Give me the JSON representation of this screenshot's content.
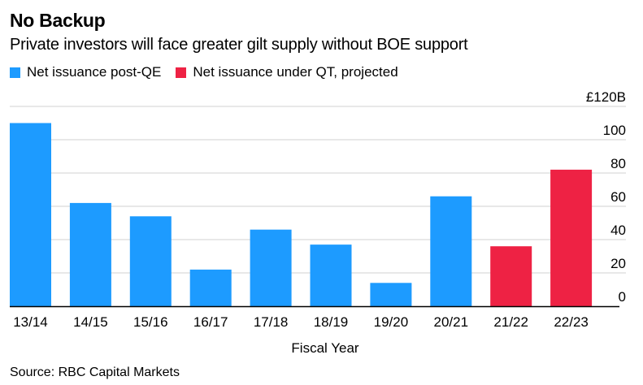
{
  "chart_data": {
    "type": "bar",
    "title": "No Backup",
    "subtitle": "Private investors will face greater gilt supply without BOE support",
    "xlabel": "Fiscal Year",
    "ylabel": "",
    "y_unit_label": "£120B",
    "ylim": [
      0,
      120
    ],
    "yticks": [
      0,
      20,
      40,
      60,
      80,
      100,
      120
    ],
    "ytick_labels": [
      "0",
      "20",
      "40",
      "60",
      "80",
      "100",
      "£120B"
    ],
    "grid": true,
    "legend_position": "top-left",
    "categories": [
      "13/14",
      "14/15",
      "15/16",
      "16/17",
      "17/18",
      "18/19",
      "19/20",
      "20/21",
      "21/22",
      "22/23"
    ],
    "series": [
      {
        "name": "Net issuance post-QE",
        "color": "#1d9bff",
        "values": [
          110,
          62,
          54,
          22,
          46,
          37,
          14,
          66,
          null,
          null
        ]
      },
      {
        "name": "Net issuance under QT, projected",
        "color": "#ee2244",
        "values": [
          null,
          null,
          null,
          null,
          null,
          null,
          null,
          null,
          36,
          82
        ]
      }
    ],
    "source": "Source: RBC Capital Markets"
  }
}
